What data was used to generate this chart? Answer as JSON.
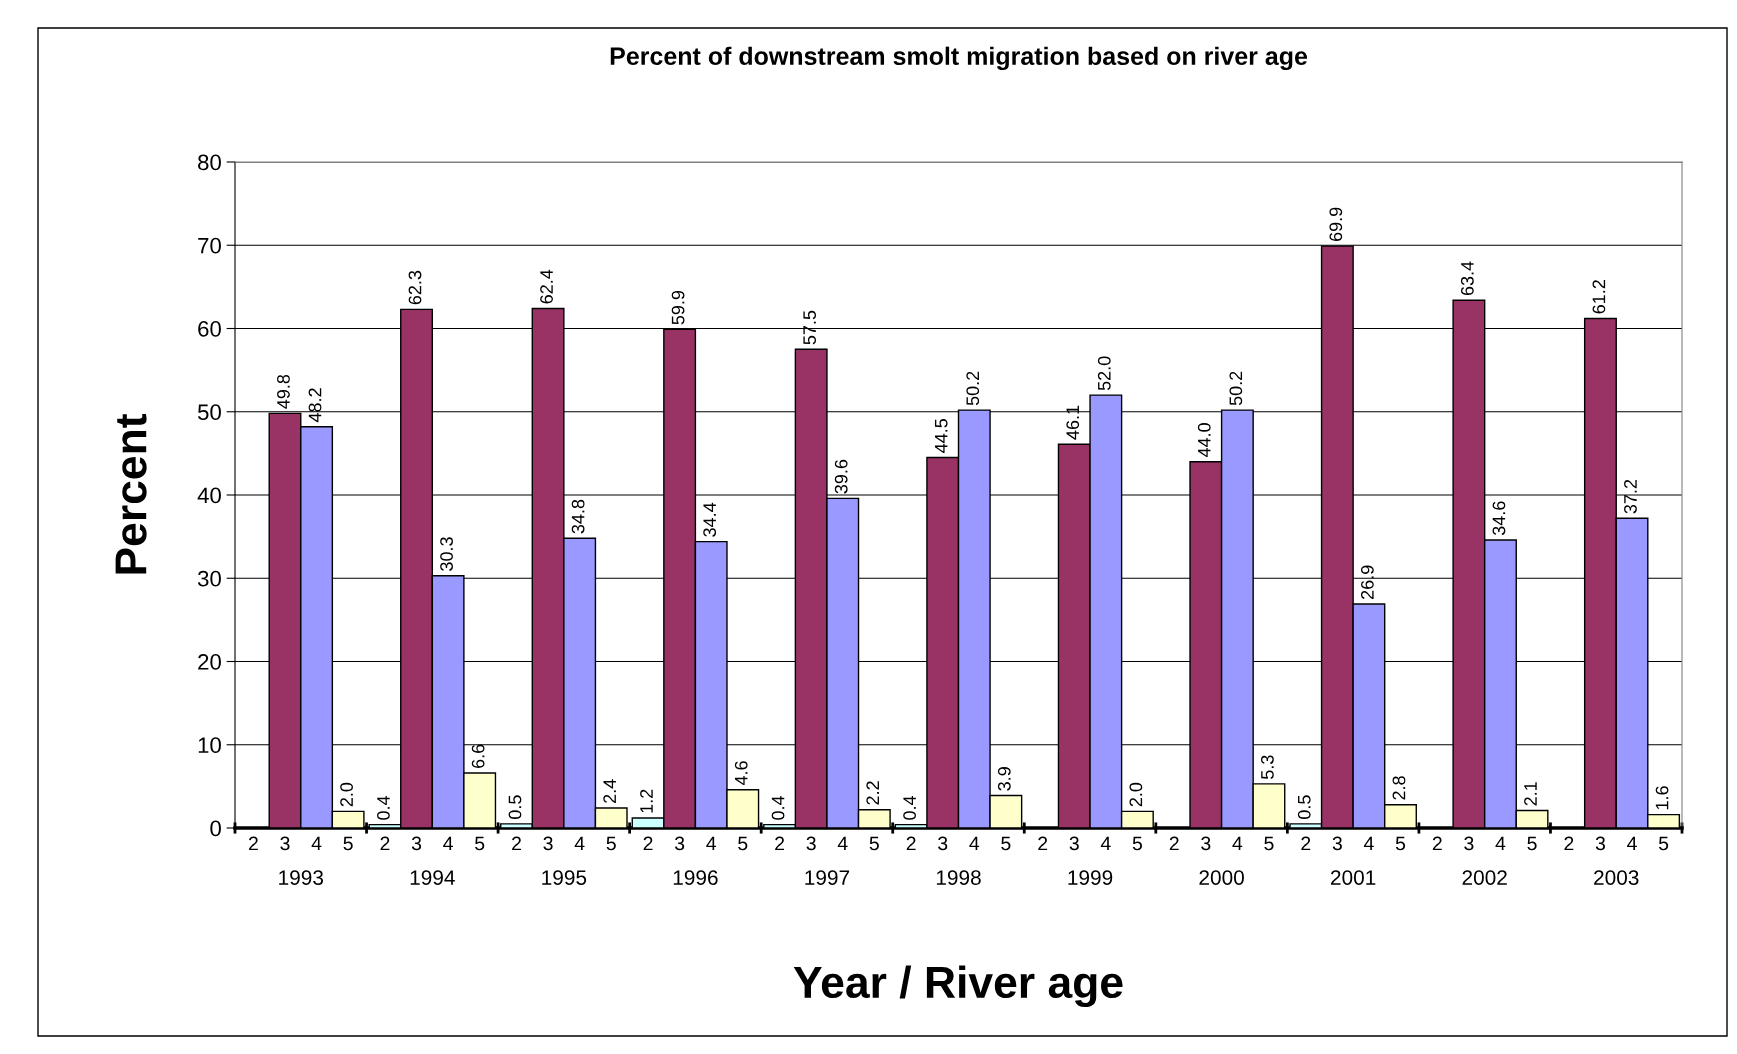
{
  "chart_data": {
    "type": "bar",
    "title": "Percent of downstream smolt migration based on river age",
    "xlabel": "Year / River age",
    "ylabel": "Percent",
    "categories": [
      "1993",
      "1994",
      "1995",
      "1996",
      "1997",
      "1998",
      "1999",
      "2000",
      "2001",
      "2002",
      "2003"
    ],
    "series": [
      {
        "name": "2",
        "color": "#ccffff",
        "values": [
          null,
          0.4,
          0.5,
          1.2,
          0.4,
          0.4,
          null,
          null,
          0.5,
          null,
          null
        ],
        "value_labels": [
          null,
          "0.4",
          "0.5",
          "1.2",
          "0.4",
          "0.4",
          null,
          null,
          "0.5",
          null,
          null
        ]
      },
      {
        "name": "3",
        "color": "#993366",
        "values": [
          49.8,
          62.3,
          62.4,
          59.9,
          57.5,
          44.5,
          46.1,
          44.0,
          69.9,
          63.4,
          61.2
        ],
        "value_labels": [
          "49.8",
          "62.3",
          "62.4",
          "59.9",
          "57.5",
          "44.5",
          "46.1",
          "44.0",
          "69.9",
          "63.4",
          "61.2"
        ]
      },
      {
        "name": "4",
        "color": "#9999ff",
        "values": [
          48.2,
          30.3,
          34.8,
          34.4,
          39.6,
          50.2,
          52.0,
          50.2,
          26.9,
          34.6,
          37.2
        ],
        "value_labels": [
          "48.2",
          "30.3",
          "34.8",
          "34.4",
          "39.6",
          "50.2",
          "52.0",
          "50.2",
          "26.9",
          "34.6",
          "37.2"
        ]
      },
      {
        "name": "5",
        "color": "#ffffcc",
        "values": [
          2.0,
          6.6,
          2.4,
          4.6,
          2.2,
          3.9,
          2.0,
          5.3,
          2.8,
          2.1,
          1.6
        ],
        "value_labels": [
          "2.0",
          "6.6",
          "2.4",
          "4.6",
          "2.2",
          "3.9",
          "2.0",
          "5.3",
          "2.8",
          "2.1",
          "1.6"
        ]
      }
    ],
    "ylim": [
      0,
      80
    ],
    "yticks": [
      0,
      10,
      20,
      30,
      40,
      50,
      60,
      70,
      80
    ],
    "grid": "y",
    "legend": false
  }
}
